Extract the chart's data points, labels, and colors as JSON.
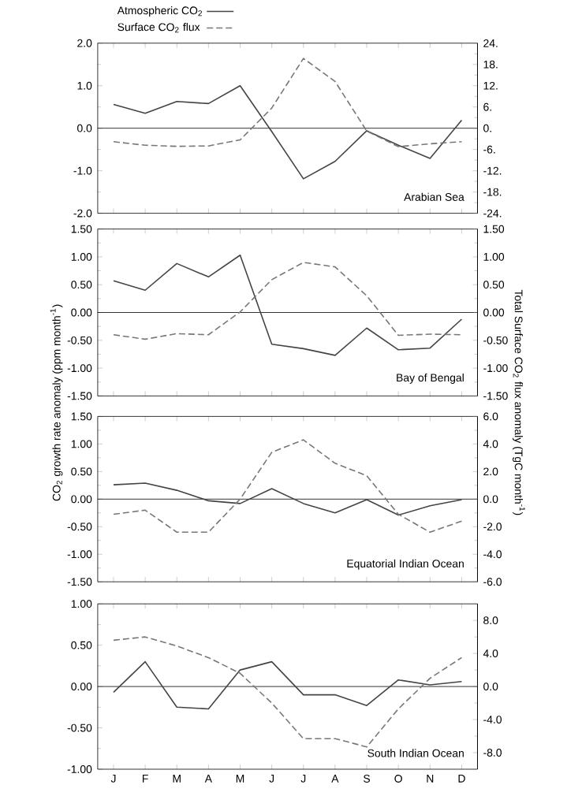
{
  "chart_data": [
    {
      "type": "line",
      "categories": [
        null,
        null,
        null,
        null,
        null,
        null,
        null,
        null,
        null,
        null,
        null,
        null
      ],
      "series": [
        {
          "name": "Atmospheric CO$_{2}$",
          "color": "#444444",
          "line_style": "solid",
          "values": [
            0.56,
            0.35,
            0.63,
            0.58,
            1.0,
            -0.08,
            -1.19,
            -0.78,
            -0.06,
            -0.4,
            -0.71,
            0.19
          ]
        },
        {
          "name": "Surface CO$_{2}$ flux",
          "color": "#777777",
          "line_style": "dashed",
          "axis": "y2",
          "values": [
            -3.8,
            -4.8,
            -5.1,
            -5.0,
            -3.3,
            5.7,
            19.7,
            13.2,
            -0.8,
            -5.2,
            -4.4,
            -3.8
          ]
        }
      ],
      "ylim": [
        -2,
        2
      ],
      "yticks": [
        {
          "value": -2,
          "label": "-2.0"
        },
        {
          "value": -1,
          "label": "-1.0"
        },
        {
          "value": 0,
          "label": "0.0"
        },
        {
          "value": 1,
          "label": "1.0"
        },
        {
          "value": 2,
          "label": "2.0"
        }
      ],
      "y2lim": [
        -24,
        24
      ],
      "y2ticks": [
        {
          "value": -24,
          "label": "-24."
        },
        {
          "value": -18,
          "label": "-18."
        },
        {
          "value": -12,
          "label": "-12."
        },
        {
          "value": -6,
          "label": "-6."
        },
        {
          "value": 0,
          "label": "0."
        },
        {
          "value": 6,
          "label": "6."
        },
        {
          "value": 12,
          "label": "12."
        },
        {
          "value": 18,
          "label": "18."
        },
        {
          "value": 24,
          "label": "24."
        }
      ],
      "ref_lines": [
        {
          "axis": "y",
          "value": 0
        }
      ],
      "annotations": [
        "Arabian Sea"
      ],
      "legend": "top",
      "tick_labels": "y"
    },
    {
      "type": "line",
      "categories": [
        null,
        null,
        null,
        null,
        null,
        null,
        null,
        null,
        null,
        null,
        null,
        null
      ],
      "series": [
        {
          "color": "#444444",
          "line_style": "solid",
          "values": [
            0.57,
            0.4,
            0.88,
            0.64,
            1.03,
            -0.57,
            -0.65,
            -0.77,
            -0.28,
            -0.67,
            -0.64,
            -0.12
          ]
        },
        {
          "color": "#777777",
          "line_style": "dashed",
          "axis": "y2",
          "values": [
            -0.4,
            -0.48,
            -0.38,
            -0.4,
            0.01,
            0.59,
            0.9,
            0.82,
            0.3,
            -0.41,
            -0.39,
            -0.4
          ]
        }
      ],
      "ylabel": "CO$_{2}$ growth rate anomaly (ppm month$^{-1}$)",
      "y2label": "Total Surface CO$_{2}$ flux anomaly (TgC month$^{-1}$)",
      "ylim": [
        -1.5,
        1.5
      ],
      "yticks": [
        {
          "value": -1.5,
          "label": "-1.50"
        },
        {
          "value": -1,
          "label": "-1.00"
        },
        {
          "value": -0.5,
          "label": "-0.50"
        },
        {
          "value": 0,
          "label": "0.00"
        },
        {
          "value": 0.5,
          "label": "0.50"
        },
        {
          "value": 1,
          "label": "1.00"
        },
        {
          "value": 1.5,
          "label": "1.50"
        }
      ],
      "y2lim": [
        -1.5,
        1.5
      ],
      "y2ticks": [
        {
          "value": -1.5,
          "label": "-1.50"
        },
        {
          "value": -1,
          "label": "-1.00"
        },
        {
          "value": -0.5,
          "label": "-0.50"
        },
        {
          "value": 0,
          "label": "0.00"
        },
        {
          "value": 0.5,
          "label": "0.50"
        },
        {
          "value": 1,
          "label": "1.00"
        },
        {
          "value": 1.5,
          "label": "1.50"
        }
      ],
      "ref_lines": [
        {
          "axis": "y",
          "value": 0
        }
      ],
      "annotations": [
        "Bay of Bengal"
      ],
      "tick_labels": "y"
    },
    {
      "type": "line",
      "categories": [
        null,
        null,
        null,
        null,
        null,
        null,
        null,
        null,
        null,
        null,
        null,
        null
      ],
      "series": [
        {
          "color": "#444444",
          "line_style": "solid",
          "values": [
            0.26,
            0.29,
            0.16,
            -0.03,
            -0.08,
            0.19,
            -0.08,
            -0.25,
            -0.01,
            -0.29,
            -0.12,
            -0.01
          ]
        },
        {
          "color": "#777777",
          "line_style": "dashed",
          "axis": "y2",
          "values": [
            -1.1,
            -0.8,
            -2.4,
            -2.4,
            0.0,
            3.4,
            4.3,
            2.6,
            1.7,
            -1.1,
            -2.4,
            -1.6
          ]
        }
      ],
      "ylim": [
        -1.5,
        1.5
      ],
      "yticks": [
        {
          "value": -1.5,
          "label": "-1.50"
        },
        {
          "value": -1,
          "label": "-1.00"
        },
        {
          "value": -0.5,
          "label": "-0.50"
        },
        {
          "value": 0,
          "label": "0.00"
        },
        {
          "value": 0.5,
          "label": "0.50"
        },
        {
          "value": 1,
          "label": "1.00"
        },
        {
          "value": 1.5,
          "label": "1.50"
        }
      ],
      "y2lim": [
        -6,
        6
      ],
      "y2ticks": [
        {
          "value": -6,
          "label": "-6.0"
        },
        {
          "value": -4,
          "label": "-4.0"
        },
        {
          "value": -2,
          "label": "-2.0"
        },
        {
          "value": 0,
          "label": "0.0"
        },
        {
          "value": 2,
          "label": "2.0"
        },
        {
          "value": 4,
          "label": "4.0"
        },
        {
          "value": 6,
          "label": "6.0"
        }
      ],
      "ref_lines": [
        {
          "axis": "y",
          "value": 0
        }
      ],
      "annotations": [
        "Equatorial Indian Ocean"
      ],
      "tick_labels": "y"
    },
    {
      "type": "line",
      "categories": [
        "J",
        "F",
        "M",
        "A",
        "M",
        "J",
        "J",
        "A",
        "S",
        "O",
        "N",
        "D"
      ],
      "series": [
        {
          "color": "#444444",
          "line_style": "solid",
          "values": [
            -0.07,
            0.3,
            -0.25,
            -0.27,
            0.2,
            0.3,
            -0.1,
            -0.1,
            -0.23,
            0.08,
            0.02,
            0.06
          ]
        },
        {
          "color": "#777777",
          "line_style": "dashed",
          "axis": "y2",
          "values": [
            5.6,
            6.0,
            4.9,
            3.5,
            1.6,
            -2.0,
            -6.3,
            -6.3,
            -7.3,
            -2.7,
            1.0,
            3.5
          ]
        }
      ],
      "ylim": [
        -1,
        1
      ],
      "yticks": [
        {
          "value": -1,
          "label": "-1.00"
        },
        {
          "value": -0.5,
          "label": "-0.50"
        },
        {
          "value": 0,
          "label": "0.00"
        },
        {
          "value": 0.5,
          "label": "0.50"
        },
        {
          "value": 1,
          "label": "1.00"
        }
      ],
      "y2lim": [
        -10,
        10
      ],
      "y2ticks": [
        {
          "value": -8,
          "label": "-8.0"
        },
        {
          "value": -4,
          "label": "-4.0"
        },
        {
          "value": 0,
          "label": "0.0"
        },
        {
          "value": 4,
          "label": "4.0"
        },
        {
          "value": 8,
          "label": "8.0"
        }
      ],
      "ref_lines": [
        {
          "axis": "y",
          "value": 0
        }
      ],
      "annotations": [
        "South Indian Ocean"
      ]
    }
  ]
}
